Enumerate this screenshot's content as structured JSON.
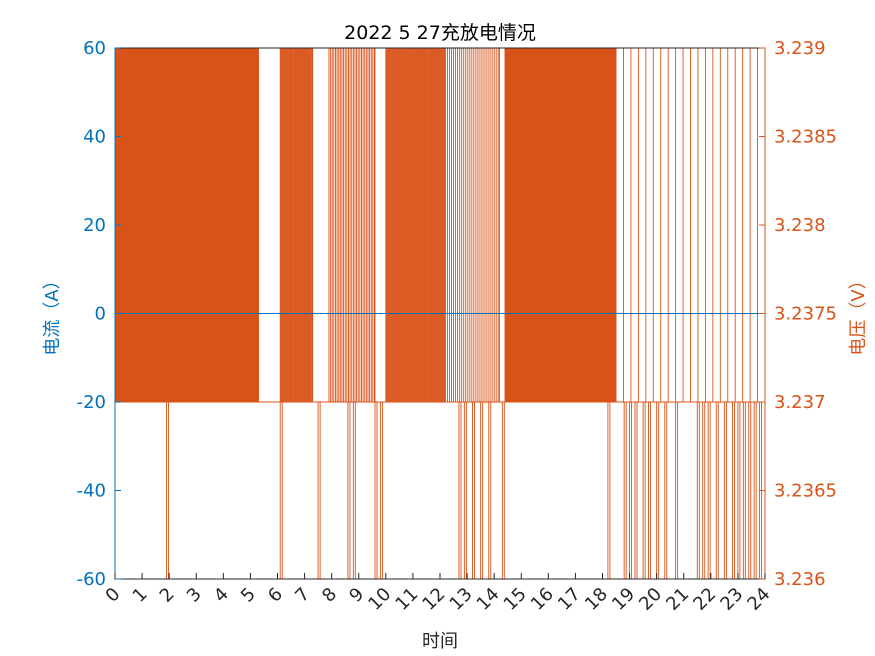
{
  "chart_data": {
    "type": "line",
    "title": "2022   5  27充放电情况",
    "xlabel": "时间",
    "ylabel_left": "电流（A）",
    "ylabel_right": "电压（V）",
    "xlim": [
      0,
      24
    ],
    "ylim_left": [
      -60,
      60
    ],
    "ylim_right": [
      3.236,
      3.239
    ],
    "x_ticks": [
      "0",
      "1",
      "2",
      "3",
      "4",
      "5",
      "6",
      "7",
      "8",
      "9",
      "10",
      "11",
      "12",
      "13",
      "14",
      "15",
      "16",
      "17",
      "18",
      "19",
      "20",
      "21",
      "22",
      "23",
      "24"
    ],
    "y_ticks_left": [
      "-60",
      "-40",
      "-20",
      "0",
      "20",
      "40",
      "60"
    ],
    "y_ticks_right": [
      "3.236",
      "3.2365",
      "3.237",
      "3.2375",
      "3.238",
      "3.2385",
      "3.239"
    ],
    "grid": false,
    "colors": {
      "left_axis": "#0072BD",
      "right_axis": "#D95319",
      "title": "#000000"
    },
    "series": [
      {
        "axis": "left",
        "values_x": [
          0,
          24
        ],
        "values_y": [
          0,
          0
        ]
      },
      {
        "axis": "right",
        "dense_segments": [
          {
            "start": 0.0,
            "end": 5.3,
            "level": 3.237,
            "high": 3.239,
            "step": 0.06
          },
          {
            "start": 6.1,
            "end": 7.3,
            "level": 3.237,
            "high": 3.239,
            "step": 0.07
          },
          {
            "start": 7.9,
            "end": 9.6,
            "level": 3.237,
            "high": 3.239,
            "step": 0.12
          },
          {
            "start": 10.0,
            "end": 12.2,
            "level": 3.237,
            "high": 3.239,
            "step": 0.07
          },
          {
            "start": 12.2,
            "end": 14.2,
            "level": 3.237,
            "high": 3.239,
            "step": 0.15
          },
          {
            "start": 14.4,
            "end": 18.5,
            "level": 3.237,
            "high": 3.239,
            "step": 0.06
          },
          {
            "start": 18.5,
            "end": 24.0,
            "level": 3.237,
            "high": 3.239,
            "step": 0.55
          }
        ],
        "low_spikes": [
          1.9,
          6.1,
          7.5,
          8.6,
          8.8,
          9.6,
          9.8,
          12.7,
          12.9,
          13.2,
          13.5,
          13.8,
          14.3,
          18.2,
          18.8,
          19.0,
          19.2,
          19.5,
          19.7,
          20.0,
          20.3,
          20.7,
          21.5,
          21.7,
          21.9,
          22.2,
          22.5,
          22.8,
          23.0,
          23.2,
          23.4,
          23.6,
          23.8
        ]
      }
    ]
  }
}
